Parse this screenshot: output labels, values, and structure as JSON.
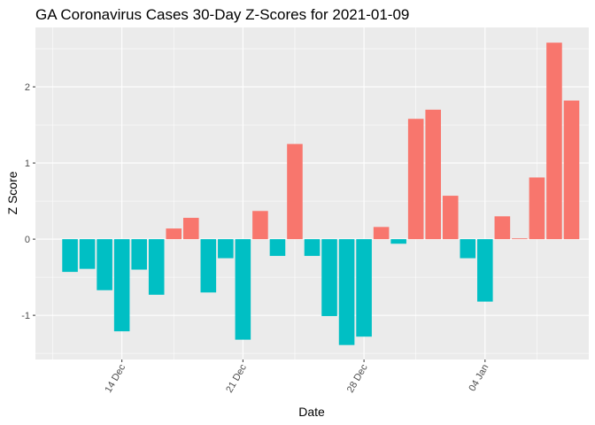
{
  "chart_data": {
    "type": "bar",
    "title": "GA Coronavirus Cases 30-Day Z-Scores for 2021-01-09",
    "xlabel": "Date",
    "ylabel": "Z Score",
    "ylim": [
      -1.58,
      2.78
    ],
    "y_ticks": [
      -1,
      0,
      1,
      2
    ],
    "y_tick_labels": [
      "-1",
      "0",
      "1",
      "2"
    ],
    "x_ticks": [
      {
        "date": "2020-12-14",
        "label": "14 Dec"
      },
      {
        "date": "2020-12-21",
        "label": "21 Dec"
      },
      {
        "date": "2020-12-28",
        "label": "28 Dec"
      },
      {
        "date": "2021-01-04",
        "label": "04 Jan"
      }
    ],
    "x_minor_dates": [
      "2020-12-10",
      "2020-12-17",
      "2020-12-24",
      "2020-12-31",
      "2021-01-07"
    ],
    "xlim_dates": [
      "2020-12-09",
      "2021-01-10"
    ],
    "legend": "none",
    "grid": true,
    "fill_rule": "positive values red, negative values teal",
    "colors": {
      "positive": "#F8766D",
      "negative": "#00BFC4"
    },
    "dates": [
      "2020-12-11",
      "2020-12-12",
      "2020-12-13",
      "2020-12-14",
      "2020-12-15",
      "2020-12-16",
      "2020-12-17",
      "2020-12-18",
      "2020-12-19",
      "2020-12-20",
      "2020-12-21",
      "2020-12-22",
      "2020-12-23",
      "2020-12-24",
      "2020-12-25",
      "2020-12-26",
      "2020-12-27",
      "2020-12-28",
      "2020-12-29",
      "2020-12-30",
      "2020-12-31",
      "2021-01-01",
      "2021-01-02",
      "2021-01-03",
      "2021-01-04",
      "2021-01-05",
      "2021-01-06",
      "2021-01-07",
      "2021-01-08",
      "2021-01-09"
    ],
    "values": [
      -0.43,
      -0.39,
      -0.67,
      -1.21,
      -0.4,
      -0.73,
      0.14,
      0.28,
      -0.7,
      -0.25,
      -1.32,
      0.37,
      -0.22,
      1.25,
      -0.22,
      -1.01,
      -1.39,
      -1.28,
      0.16,
      -0.06,
      1.58,
      1.7,
      0.57,
      -0.25,
      -0.82,
      0.3,
      0.01,
      0.81,
      2.58,
      1.82
    ]
  }
}
